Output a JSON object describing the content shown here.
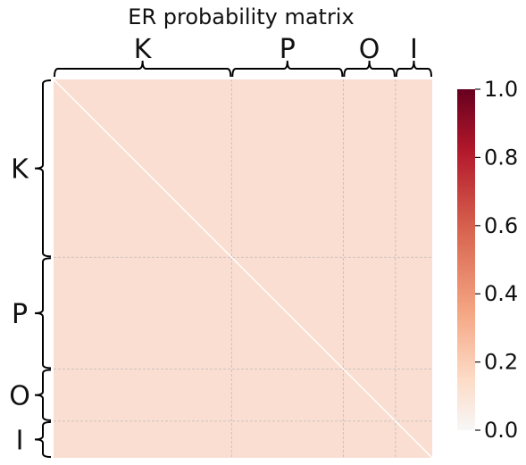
{
  "chart_data": {
    "type": "heatmap",
    "title": "ER probability matrix",
    "groups": [
      "K",
      "P",
      "O",
      "I"
    ],
    "group_fractions": [
      0.47,
      0.295,
      0.138,
      0.097
    ],
    "value": 0.2,
    "diagonal_value": 0.0,
    "colorbar": {
      "colormap": "RdBu_r (upper half: white to dark red)",
      "range": [
        0.0,
        1.0
      ],
      "ticks": [
        "0.0",
        "0.2",
        "0.4",
        "0.6",
        "0.8",
        "1.0"
      ]
    },
    "grid": true
  },
  "colors": {
    "cell_fill": "#fbded2",
    "diagonal": "#ffffff",
    "grid": "#bbbbbb",
    "brace": "#000000"
  }
}
